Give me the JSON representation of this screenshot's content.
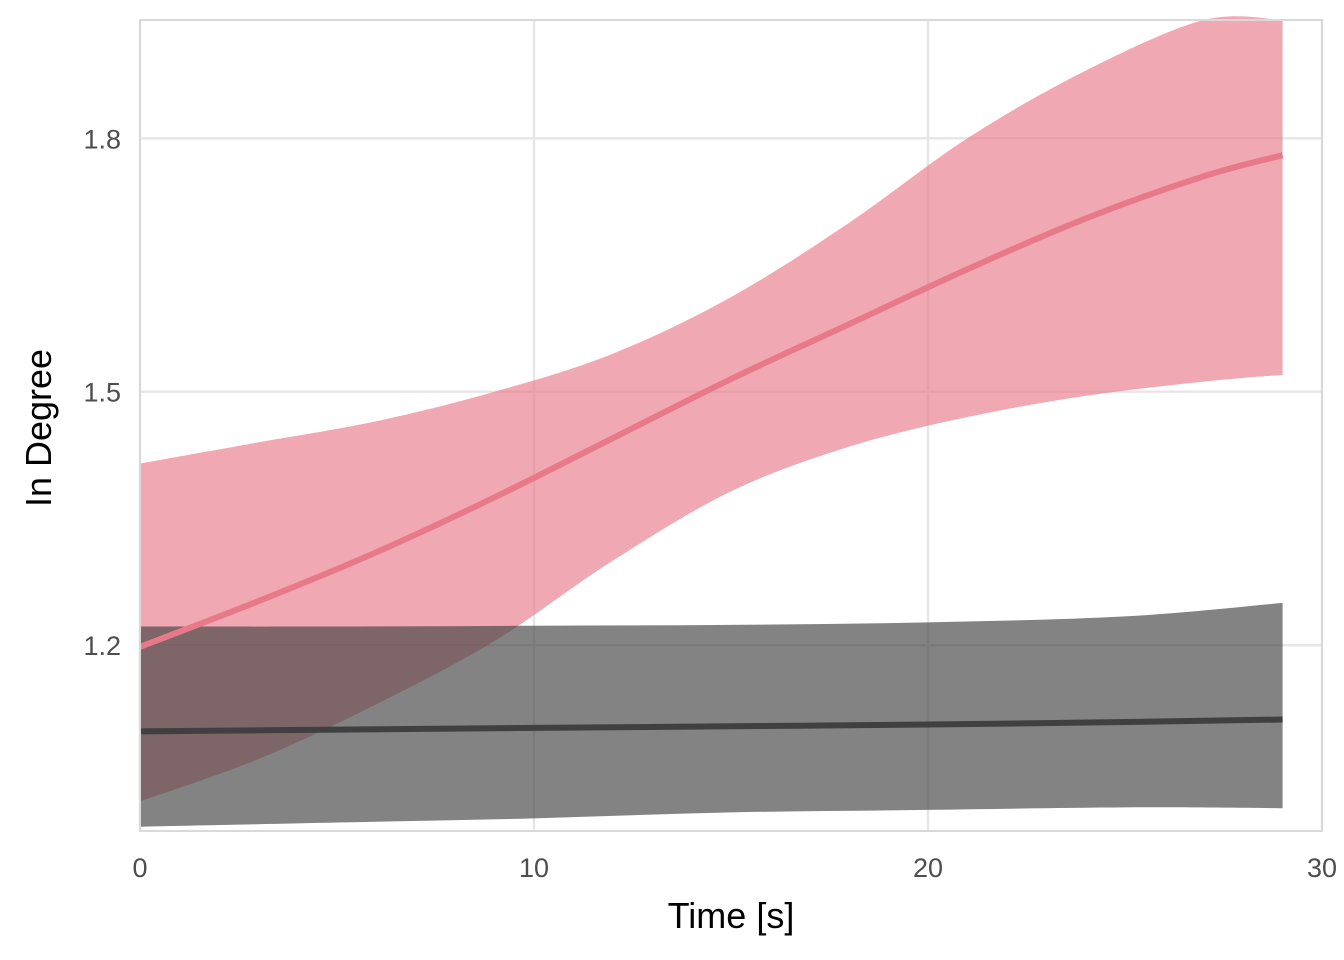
{
  "chart_data": {
    "type": "line",
    "title": "",
    "xlabel": "Time [s]",
    "ylabel": "In Degree",
    "xlim": [
      0,
      30
    ],
    "ylim": [
      0.98,
      1.94
    ],
    "x_ticks": [
      0,
      10,
      20,
      30
    ],
    "x_tick_labels": [
      "0",
      "10",
      "20",
      "30"
    ],
    "y_ticks": [
      1.2,
      1.5,
      1.8
    ],
    "y_tick_labels": [
      "1.2",
      "1.5",
      "1.8"
    ],
    "grid": true,
    "legend": "none",
    "series": [
      {
        "color": "#e8798b",
        "x": [
          0,
          3,
          6,
          9,
          12,
          15,
          18,
          21,
          24,
          27,
          29
        ],
        "y": [
          1.198,
          1.252,
          1.31,
          1.375,
          1.445,
          1.515,
          1.58,
          1.645,
          1.705,
          1.755,
          1.78
        ],
        "lower": [
          1.015,
          1.065,
          1.13,
          1.205,
          1.3,
          1.382,
          1.435,
          1.47,
          1.495,
          1.512,
          1.52
        ],
        "upper": [
          1.415,
          1.44,
          1.465,
          1.5,
          1.545,
          1.612,
          1.7,
          1.8,
          1.88,
          1.96,
          2.0
        ]
      },
      {
        "color": "#404040",
        "x": [
          0,
          5,
          10,
          15,
          20,
          25,
          29
        ],
        "y": [
          1.098,
          1.1,
          1.102,
          1.104,
          1.106,
          1.109,
          1.112
        ],
        "lower": [
          0.985,
          0.99,
          0.995,
          1.002,
          1.005,
          1.008,
          1.007
        ],
        "upper": [
          1.222,
          1.222,
          1.223,
          1.224,
          1.227,
          1.234,
          1.25
        ]
      }
    ]
  }
}
